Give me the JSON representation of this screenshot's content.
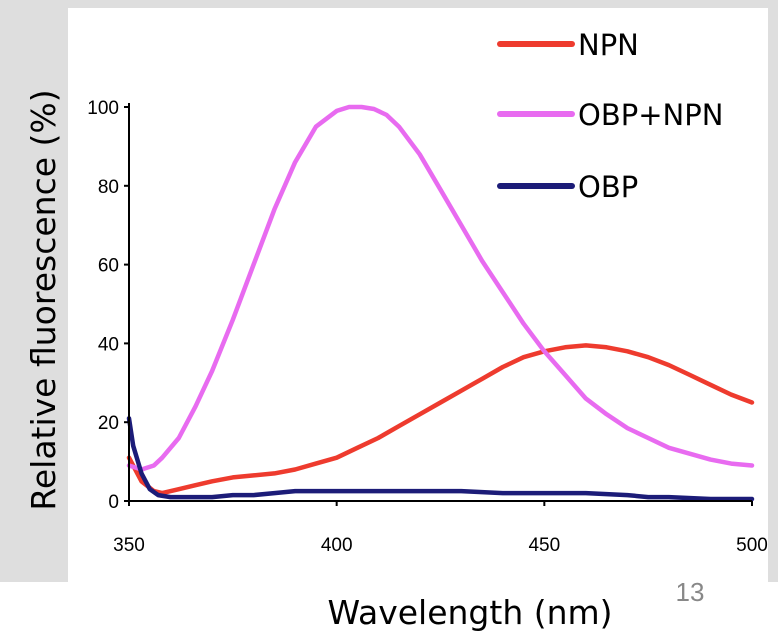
{
  "slide": {
    "page_number": "13"
  },
  "chart_data": {
    "type": "line",
    "title": "",
    "xlabel": "Wavelength (nm)",
    "ylabel": "Relative fluorescence (%)",
    "xlim": [
      350,
      500
    ],
    "ylim": [
      0,
      100
    ],
    "xticks": [
      350,
      400,
      450,
      500
    ],
    "yticks": [
      0,
      20,
      40,
      60,
      80,
      100
    ],
    "grid": false,
    "legend_position": "top-right",
    "series": [
      {
        "name": "NPN",
        "color": "#ee3b2e",
        "x": [
          350,
          353,
          356,
          358,
          362,
          366,
          370,
          375,
          380,
          385,
          390,
          395,
          400,
          405,
          410,
          415,
          420,
          425,
          430,
          435,
          440,
          445,
          450,
          455,
          460,
          465,
          470,
          475,
          480,
          485,
          490,
          495,
          500
        ],
        "y": [
          11,
          5,
          2.5,
          2,
          3,
          4,
          5,
          6,
          6.5,
          7,
          8,
          9.5,
          11,
          13.5,
          16,
          19,
          22,
          25,
          28,
          31,
          34,
          36.5,
          38,
          39,
          39.5,
          39,
          38,
          36.5,
          34.5,
          32,
          29.5,
          27,
          25
        ]
      },
      {
        "name": "OBP+NPN",
        "color": "#e86bf0",
        "x": [
          350,
          353,
          356,
          358,
          362,
          366,
          370,
          375,
          380,
          385,
          390,
          395,
          400,
          403,
          406,
          409,
          412,
          415,
          420,
          425,
          430,
          435,
          440,
          445,
          450,
          455,
          460,
          465,
          470,
          475,
          480,
          485,
          490,
          495,
          500
        ],
        "y": [
          9,
          8,
          9,
          11,
          16,
          24,
          33,
          46,
          60,
          74,
          86,
          95,
          99,
          100,
          100,
          99.5,
          98,
          95,
          88,
          79,
          70,
          61,
          53,
          45,
          38,
          32,
          26,
          22,
          18.5,
          16,
          13.5,
          12,
          10.5,
          9.5,
          9
        ]
      },
      {
        "name": "OBP",
        "color": "#1c1c78",
        "x": [
          350,
          351,
          353,
          355,
          357,
          360,
          365,
          370,
          375,
          380,
          385,
          390,
          395,
          400,
          410,
          420,
          430,
          440,
          450,
          460,
          470,
          475,
          480,
          490,
          500
        ],
        "y": [
          21,
          14,
          7,
          3,
          1.5,
          1,
          1,
          1,
          1.5,
          1.5,
          2,
          2.5,
          2.5,
          2.5,
          2.5,
          2.5,
          2.5,
          2,
          2,
          2,
          1.5,
          1,
          1,
          0.5,
          0.5
        ]
      }
    ]
  }
}
